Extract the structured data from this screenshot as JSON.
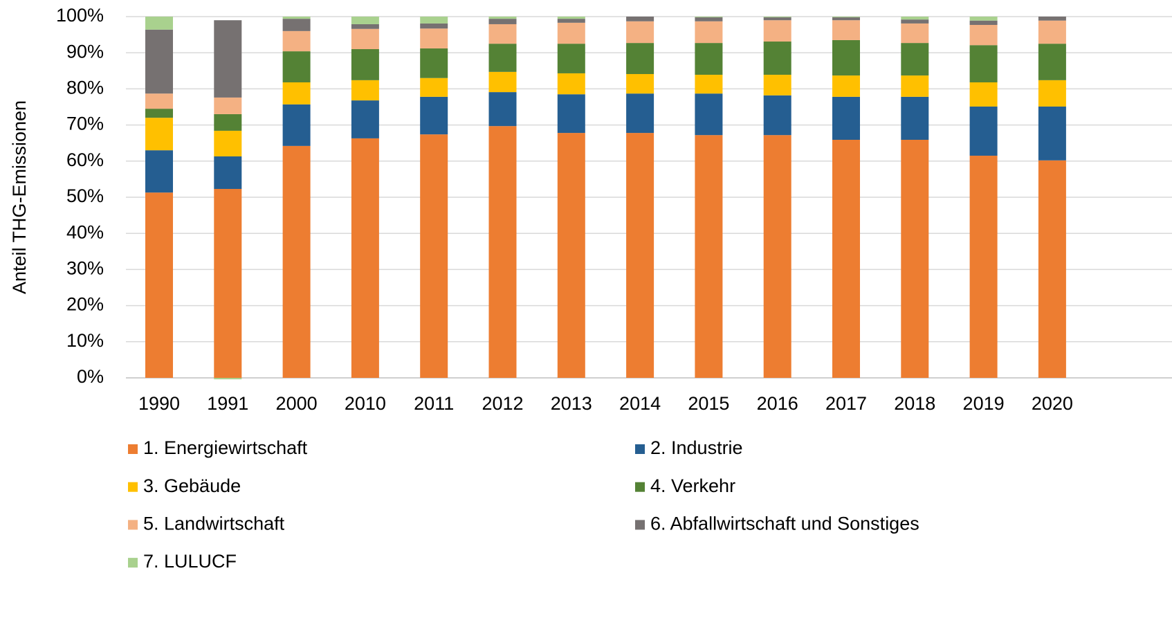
{
  "chart_data": {
    "type": "stacked_bar",
    "y_axis_label": "Anteil THG-Emissionen",
    "categories": [
      "1990",
      "1991",
      "2000",
      "2010",
      "2011",
      "2012",
      "2013",
      "2014",
      "2015",
      "2016",
      "2017",
      "2018",
      "2019",
      "2020"
    ],
    "series": [
      {
        "name": "1. Energiewirtschaft",
        "color": "#ED7D31",
        "values": [
          51.3,
          52.3,
          64.2,
          66.3,
          67.4,
          69.7,
          67.8,
          67.8,
          67.2,
          67.2,
          65.9,
          65.9,
          61.5,
          60.2
        ]
      },
      {
        "name": "2. Industrie",
        "color": "#255E91",
        "values": [
          11.7,
          9.0,
          11.5,
          10.5,
          10.4,
          9.4,
          10.7,
          10.9,
          11.5,
          11.0,
          11.9,
          11.9,
          13.6,
          14.9
        ]
      },
      {
        "name": "3. Gebäude",
        "color": "#FFC000",
        "values": [
          9.0,
          7.1,
          6.1,
          5.6,
          5.2,
          5.6,
          5.8,
          5.4,
          5.2,
          5.7,
          5.9,
          5.9,
          6.7,
          7.3
        ]
      },
      {
        "name": "4. Verkehr",
        "color": "#548235",
        "values": [
          2.5,
          4.6,
          8.6,
          8.6,
          8.2,
          7.8,
          8.2,
          8.6,
          8.8,
          9.2,
          9.8,
          9.0,
          10.3,
          10.1
        ]
      },
      {
        "name": "5. Landwirtschaft",
        "color": "#F4B183",
        "values": [
          4.2,
          4.6,
          5.6,
          5.6,
          5.5,
          5.4,
          5.8,
          6.0,
          6.0,
          5.9,
          5.5,
          5.4,
          5.6,
          6.4
        ]
      },
      {
        "name": "6. Abfallwirtschaft und Sonstiges",
        "color": "#767171",
        "values": [
          17.7,
          21.4,
          3.4,
          1.3,
          1.4,
          1.5,
          1.1,
          1.3,
          1.1,
          0.8,
          0.8,
          1.1,
          1.2,
          1.1
        ]
      },
      {
        "name": "7. LULUCF",
        "color": "#A9D18E",
        "values": [
          3.6,
          -0.4,
          0.6,
          2.1,
          1.9,
          0.6,
          0.6,
          0.0,
          0.2,
          0.2,
          0.2,
          0.8,
          1.1,
          0.0
        ]
      }
    ],
    "ylim": [
      0,
      100
    ],
    "yticks": [
      {
        "value": 0,
        "label": "0%"
      },
      {
        "value": 10,
        "label": "10%"
      },
      {
        "value": 20,
        "label": "20%"
      },
      {
        "value": 30,
        "label": "30%"
      },
      {
        "value": 40,
        "label": "40%"
      },
      {
        "value": 50,
        "label": "50%"
      },
      {
        "value": 60,
        "label": "60%"
      },
      {
        "value": 70,
        "label": "70%"
      },
      {
        "value": 80,
        "label": "80%"
      },
      {
        "value": 90,
        "label": "90%"
      },
      {
        "value": 100,
        "label": "100%"
      }
    ],
    "grid": true,
    "legend": "bottom"
  }
}
